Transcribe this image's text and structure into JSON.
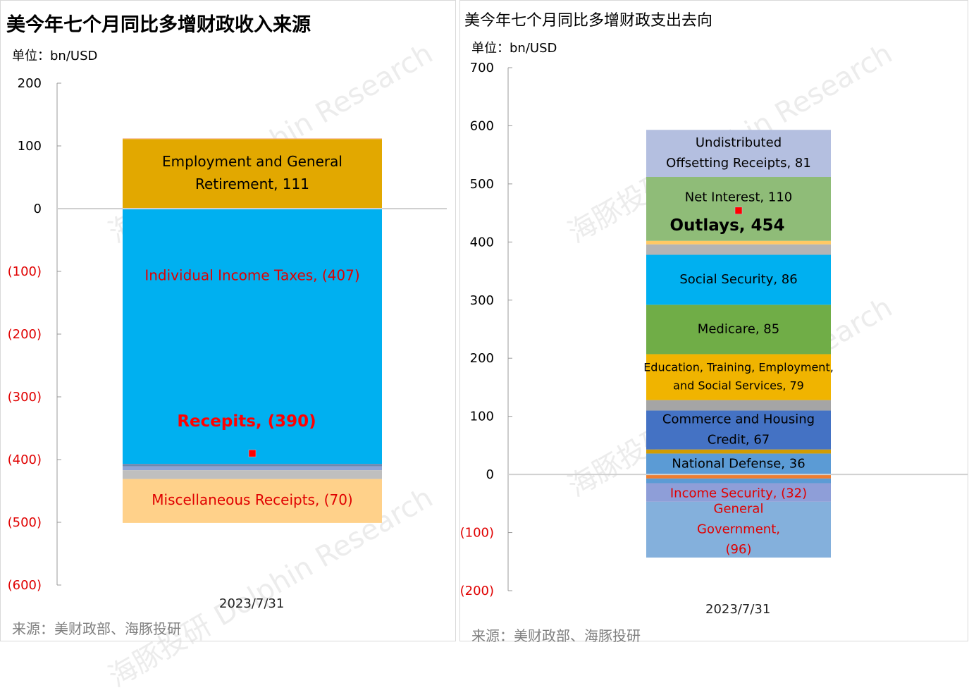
{
  "watermark": "海豚投研 Dolphin Research",
  "chart_data": [
    {
      "type": "bar",
      "stacked": true,
      "title": "美今年七个月同比多增财政收入来源",
      "unit_label": "单位：bn/USD",
      "source": "来源：美财政部、海豚投研",
      "categories": [
        "2023/7/31"
      ],
      "ylim": [
        -600,
        200
      ],
      "yticks": [
        "200",
        "100",
        "0",
        "(100)",
        "(200)",
        "(300)",
        "(400)",
        "(500)",
        "(600)"
      ],
      "ytick_values": [
        200,
        100,
        0,
        -100,
        -200,
        -300,
        -400,
        -500,
        -600
      ],
      "negative_tick_color": "#e00000",
      "series": [
        {
          "label": "Employment and General Retirement, 111",
          "value": 111,
          "color": "#e2a800",
          "label_color": "#000000"
        },
        {
          "label": "",
          "value": 1,
          "color": "#f4b183"
        },
        {
          "label": "Individual Income Taxes, (407)",
          "value": -407,
          "color": "#00b0f0",
          "label_color": "#e00000"
        },
        {
          "label": "",
          "value": -4,
          "color": "#6d88b0"
        },
        {
          "label": "",
          "value": -6,
          "color": "#8ea3d4"
        },
        {
          "label": "",
          "value": -14,
          "color": "#bfbfbf"
        },
        {
          "label": "Miscellaneous Receipts, (70)",
          "value": -70,
          "color": "#ffd18a",
          "label_color": "#e00000"
        }
      ],
      "total": {
        "label": "Recepits, (390)",
        "value": -390,
        "color": "#ff0000"
      }
    },
    {
      "type": "bar",
      "stacked": true,
      "title": "美今年七个月同比多增财政支出去向",
      "unit_label": "单位：bn/USD",
      "source": "来源：美财政部、海豚投研",
      "categories": [
        "2023/7/31"
      ],
      "ylim": [
        -200,
        700
      ],
      "yticks": [
        "700",
        "600",
        "500",
        "400",
        "300",
        "200",
        "100",
        "0",
        "(100)",
        "(200)"
      ],
      "ytick_values": [
        700,
        600,
        500,
        400,
        300,
        200,
        100,
        0,
        -100,
        -200
      ],
      "negative_tick_color": "#e00000",
      "series": [
        {
          "label": "National Defense, 36",
          "value": 36,
          "color": "#5b9bd5",
          "label_color": "#000000"
        },
        {
          "label": "",
          "value": 7,
          "color": "#d29c00"
        },
        {
          "label": "Commerce and Housing Credit, 67",
          "value": 67,
          "color": "#4472c4",
          "label_color": "#000000"
        },
        {
          "label": "",
          "value": 18,
          "color": "#a5a5a5"
        },
        {
          "label": "Education, Training, Employment, and Social Services, 79",
          "value": 79,
          "color": "#f0b400",
          "label_color": "#000000"
        },
        {
          "label": "Medicare, 85",
          "value": 85,
          "color": "#70ad47",
          "label_color": "#000000"
        },
        {
          "label": "Social Security, 86",
          "value": 86,
          "color": "#00b0f0",
          "label_color": "#000000"
        },
        {
          "label": "",
          "value": 18,
          "color": "#b4b4b4"
        },
        {
          "label": "",
          "value": 6,
          "color": "#ffc966"
        },
        {
          "label": "Net Interest, 110",
          "value": 110,
          "color": "#8fbc78",
          "label_color": "#000000"
        },
        {
          "label": "Undistributed Offsetting Receipts, 81",
          "value": 81,
          "color": "#b4bfe0",
          "label_color": "#000000"
        },
        {
          "label": "",
          "value": -7,
          "color": "#ed7d31"
        },
        {
          "label": "",
          "value": -8,
          "color": "#5b9bd5"
        },
        {
          "label": "Income Security, (32)",
          "value": -32,
          "color": "#8e9ed8",
          "label_color": "#e00000"
        },
        {
          "label": "General Government, (96)",
          "value": -96,
          "color": "#84b0dc",
          "label_color": "#e00000"
        }
      ],
      "total": {
        "label": "Outlays, 454",
        "value": 454,
        "color": "#000000"
      }
    }
  ]
}
